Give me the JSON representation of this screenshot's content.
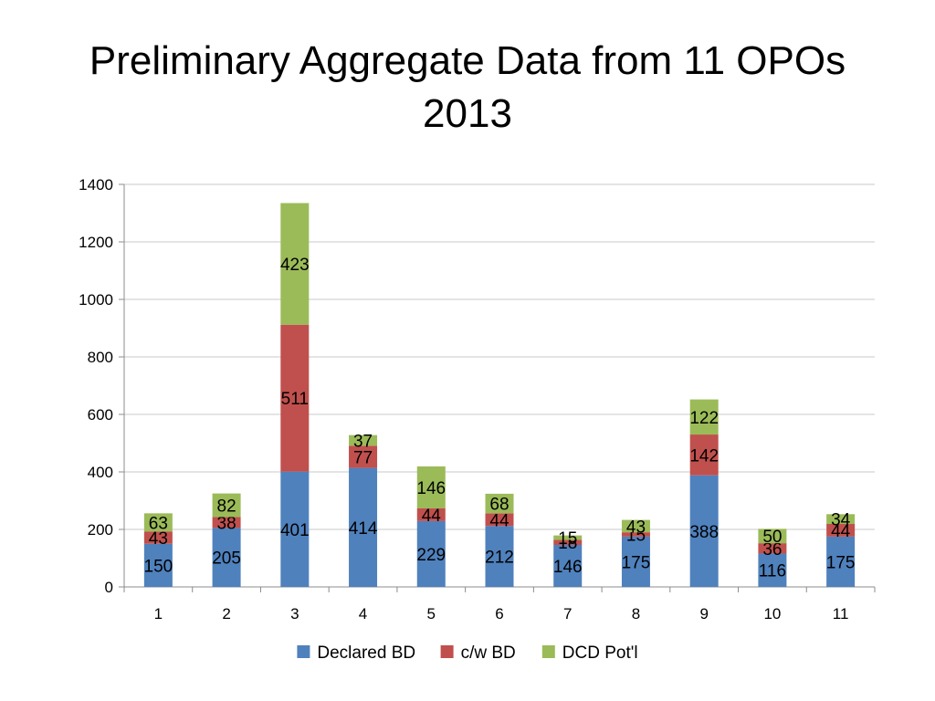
{
  "slide": {
    "title_line1": "Preliminary Aggregate Data from 11 OPOs",
    "title_line2": "2013"
  },
  "chart_data": {
    "type": "bar",
    "stacked": true,
    "categories": [
      "1",
      "2",
      "3",
      "4",
      "5",
      "6",
      "7",
      "8",
      "9",
      "10",
      "11"
    ],
    "series": [
      {
        "name": "Declared BD",
        "color": "#4F81BD",
        "values": [
          150,
          205,
          401,
          414,
          229,
          212,
          146,
          175,
          388,
          116,
          175
        ]
      },
      {
        "name": "c/w BD",
        "color": "#C0504D",
        "values": [
          43,
          38,
          511,
          77,
          44,
          44,
          18,
          15,
          142,
          36,
          44
        ]
      },
      {
        "name": "DCD Pot'l",
        "color": "#9BBB59",
        "values": [
          63,
          82,
          423,
          37,
          146,
          68,
          15,
          43,
          122,
          50,
          34
        ]
      }
    ],
    "ylim": [
      0,
      1400
    ],
    "yticks": [
      "0",
      "200",
      "400",
      "600",
      "800",
      "1000",
      "1200",
      "1400"
    ],
    "grid": true,
    "legend_position": "bottom",
    "data_labels": true
  }
}
